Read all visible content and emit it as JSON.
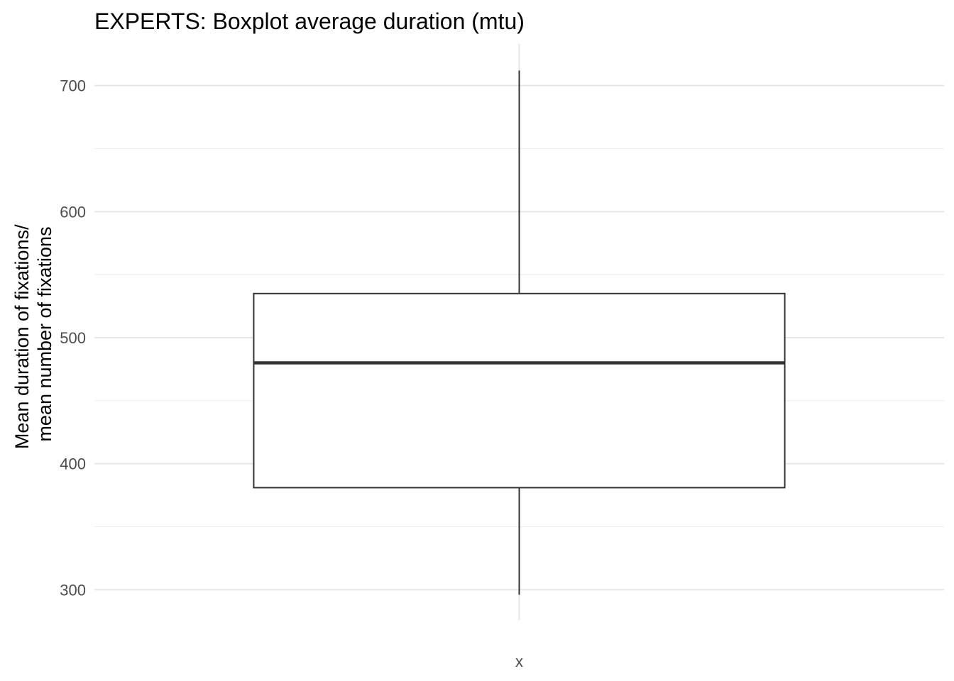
{
  "chart_data": {
    "type": "boxplot",
    "title": "EXPERTS: Boxplot average duration (mtu)",
    "xlabel": "",
    "ylabel_lines": [
      "Mean duration of fixations/",
      "mean number of fixations"
    ],
    "categories": [
      "x"
    ],
    "boxes": [
      {
        "category": "x",
        "min": 296,
        "q1": 381,
        "median": 480,
        "q3": 535,
        "max": 712
      }
    ],
    "ylim": [
      276,
      733
    ],
    "yticks": [
      300,
      400,
      500,
      600,
      700
    ],
    "yticks_minor": [
      350,
      450,
      550,
      650
    ],
    "grid": true,
    "legend": "none",
    "colors": {
      "box_stroke": "#333333",
      "grid": "#e6e6e6",
      "tick_text": "#4d4d4d"
    }
  }
}
